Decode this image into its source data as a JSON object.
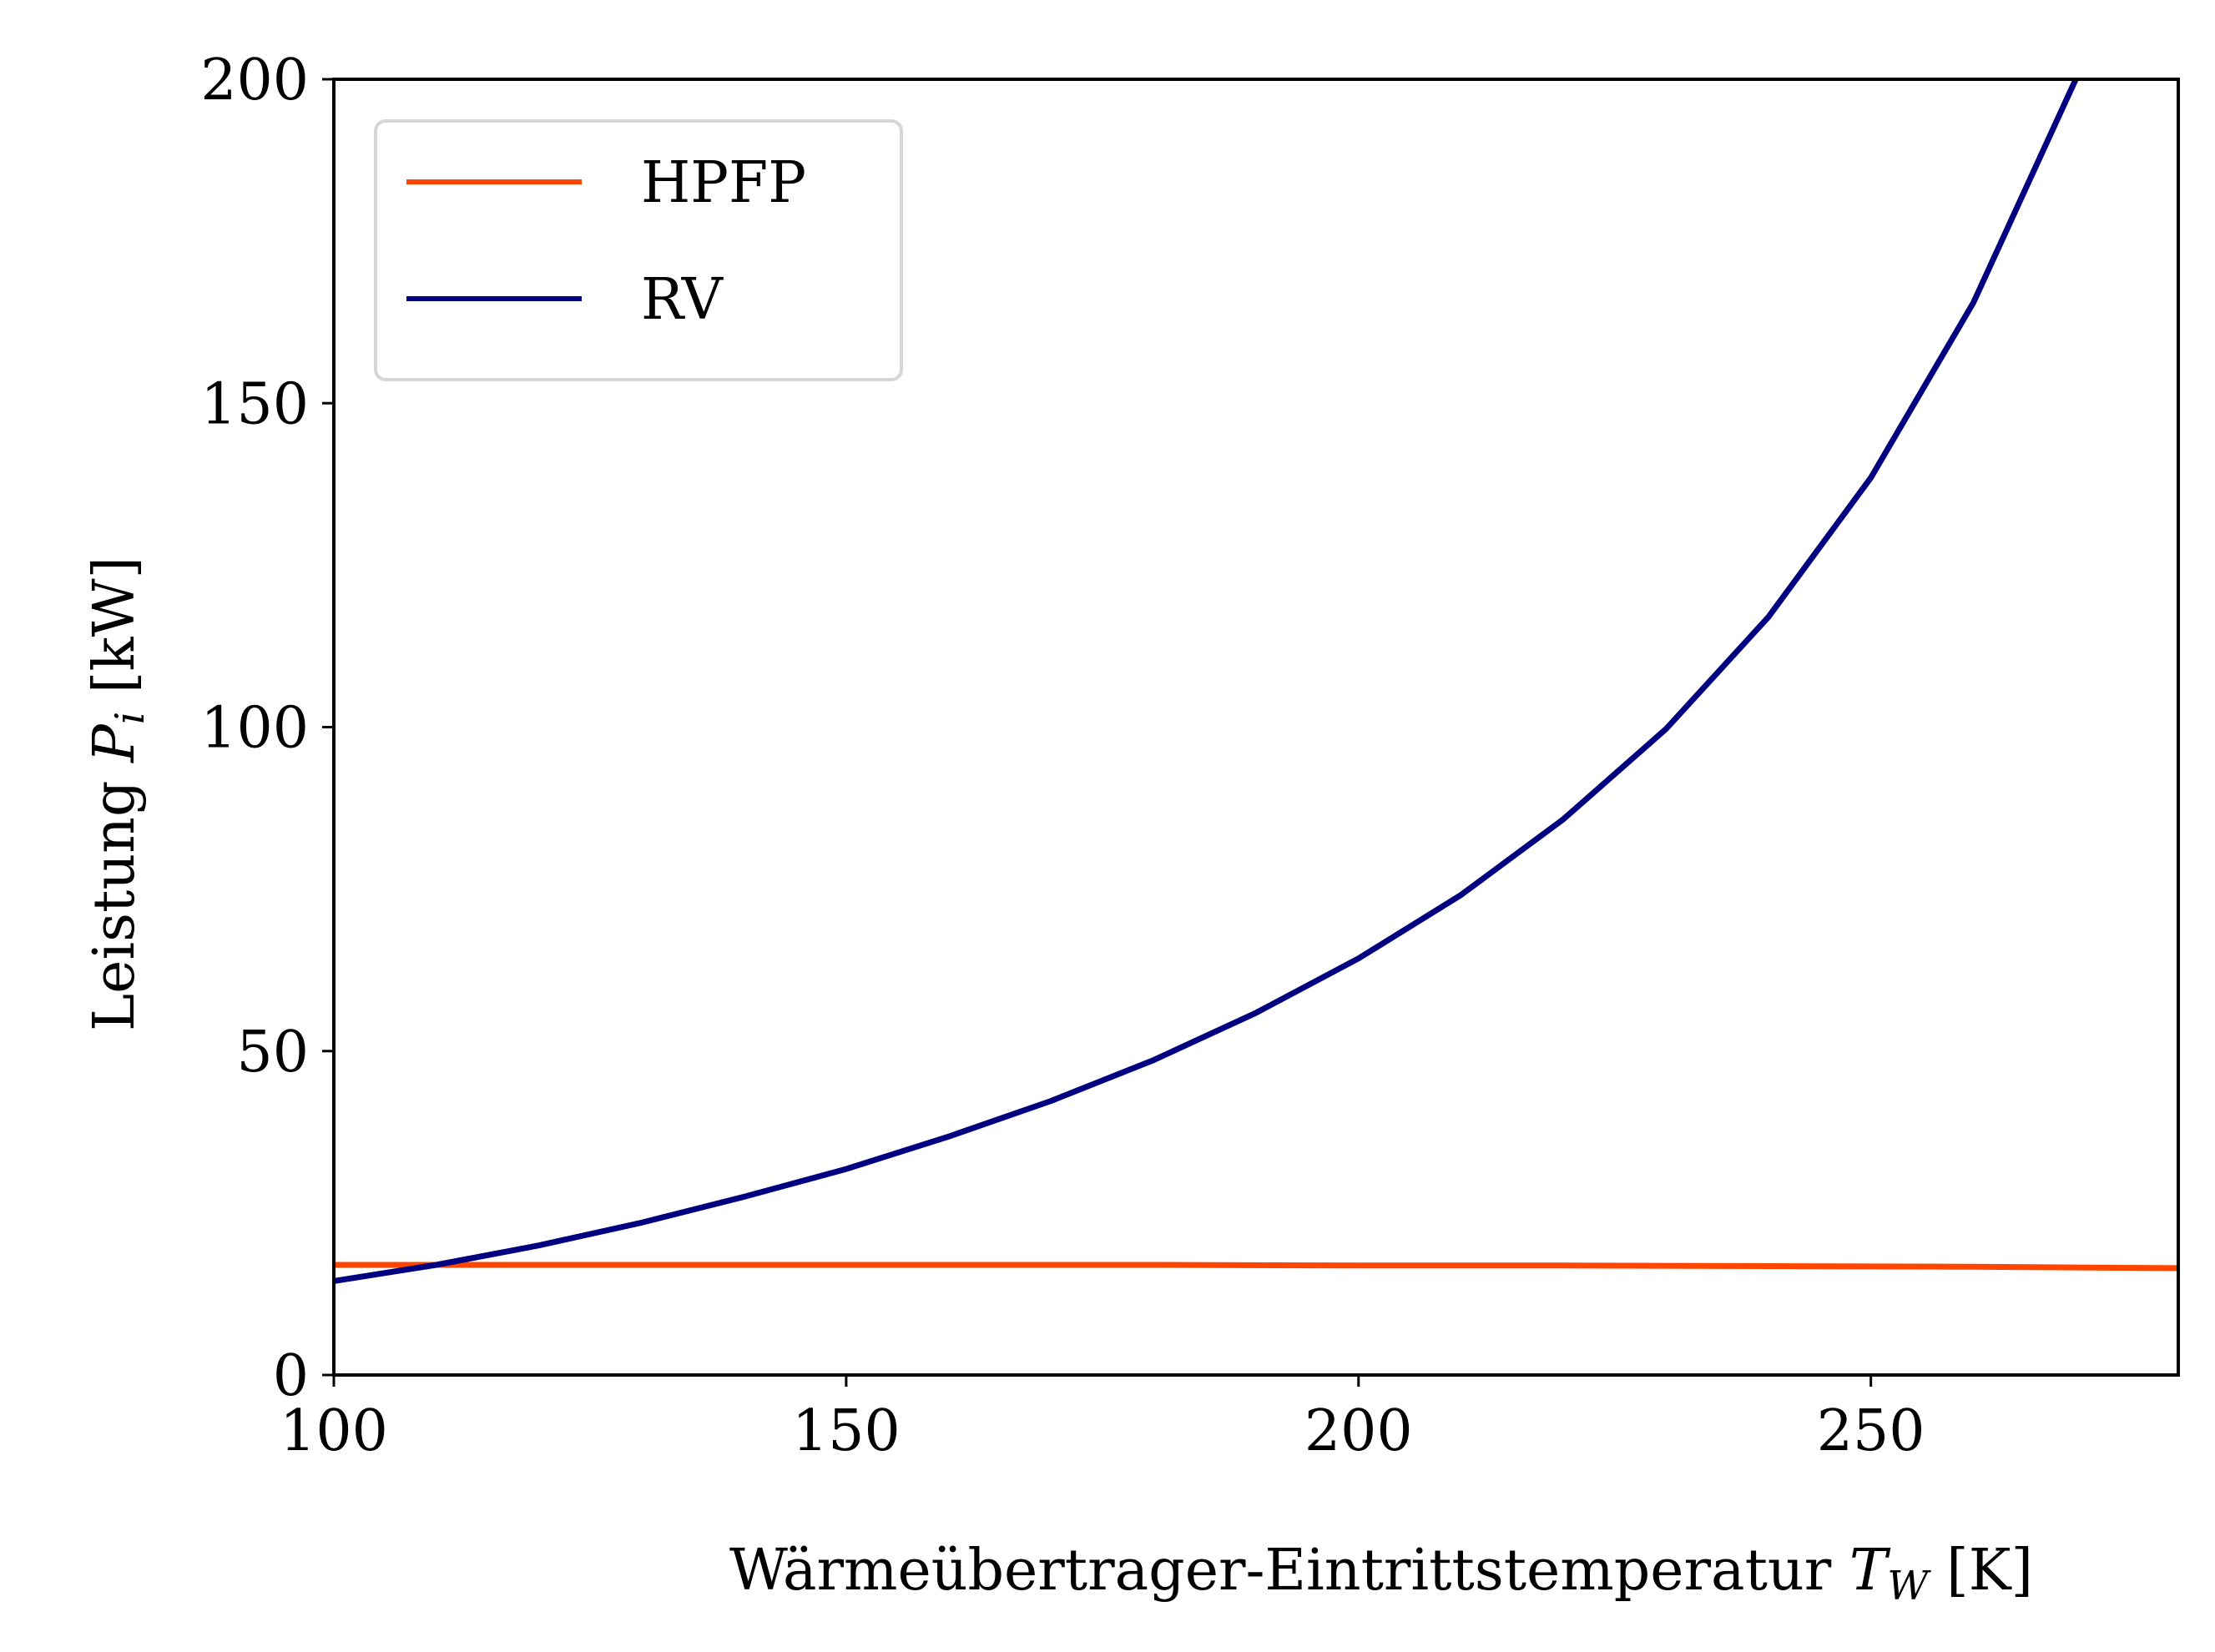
{
  "chart_data": {
    "type": "line",
    "title": "",
    "xlabel_prefix": "Wärmeübertrager-Eintrittstemperatur ",
    "xlabel_symbol": "T",
    "xlabel_subscript": "W",
    "xlabel_unit": " [K]",
    "ylabel_prefix": "Leistung ",
    "ylabel_symbol": "P",
    "ylabel_subscript": "i",
    "ylabel_unit": " [kW]",
    "xlim": [
      100,
      280
    ],
    "ylim": [
      0,
      200
    ],
    "xticks": [
      100,
      150,
      200,
      250
    ],
    "yticks": [
      0,
      50,
      100,
      150,
      200
    ],
    "grid": false,
    "legend_position": "top-left",
    "series": [
      {
        "name": "HPFP",
        "color": "#ff4500",
        "x": [
          100,
          120,
          140,
          160,
          180,
          200,
          220,
          240,
          260,
          280
        ],
        "y": [
          17.0,
          17.0,
          17.0,
          17.0,
          17.0,
          16.9,
          16.9,
          16.8,
          16.7,
          16.5
        ]
      },
      {
        "name": "RV",
        "color": "#000080",
        "x": [
          100,
          110,
          120,
          130,
          140,
          150,
          160,
          170,
          180,
          190,
          200,
          210,
          220,
          230,
          240,
          250,
          260,
          270
        ],
        "y": [
          14.5,
          17.0,
          20.0,
          23.5,
          27.5,
          31.8,
          36.8,
          42.3,
          48.6,
          55.9,
          64.3,
          74.1,
          85.8,
          99.7,
          117.0,
          138.5,
          165.5,
          200.0
        ]
      }
    ]
  }
}
